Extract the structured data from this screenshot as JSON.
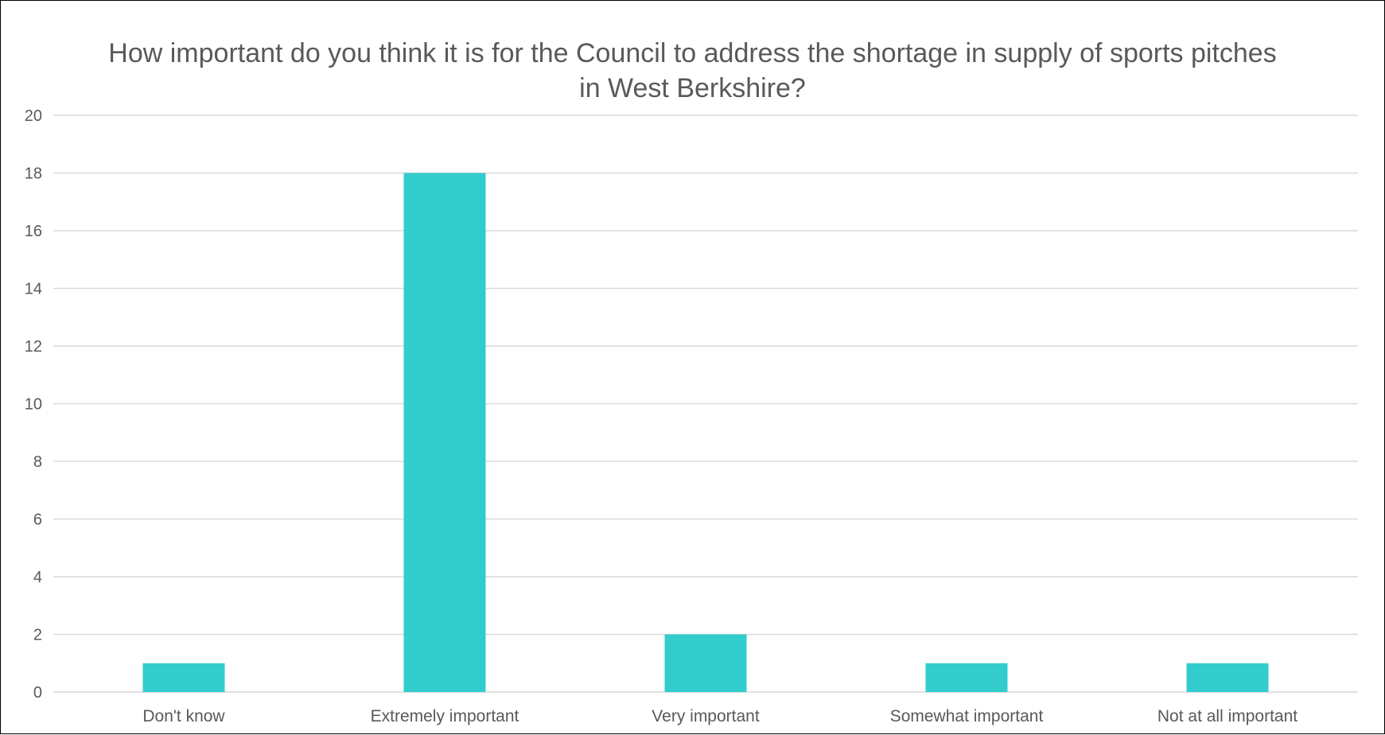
{
  "chart_data": {
    "type": "bar",
    "title": "How important do you think it is for the Council to address the shortage in supply of sports pitches in West Berkshire?",
    "xlabel": "",
    "ylabel": "",
    "categories": [
      "Don't know",
      "Extremely important",
      "Very important",
      "Somewhat important",
      "Not at all important"
    ],
    "values": [
      1,
      18,
      2,
      1,
      1
    ],
    "ylim": [
      0,
      20
    ],
    "yticks": [
      "0",
      "2",
      "4",
      "6",
      "8",
      "10",
      "12",
      "14",
      "16",
      "18",
      "20"
    ],
    "grid": true,
    "legend": "none",
    "colors": {
      "bar": "#33CCCC",
      "grid": "#D9D9D9",
      "text": "#595959"
    }
  }
}
